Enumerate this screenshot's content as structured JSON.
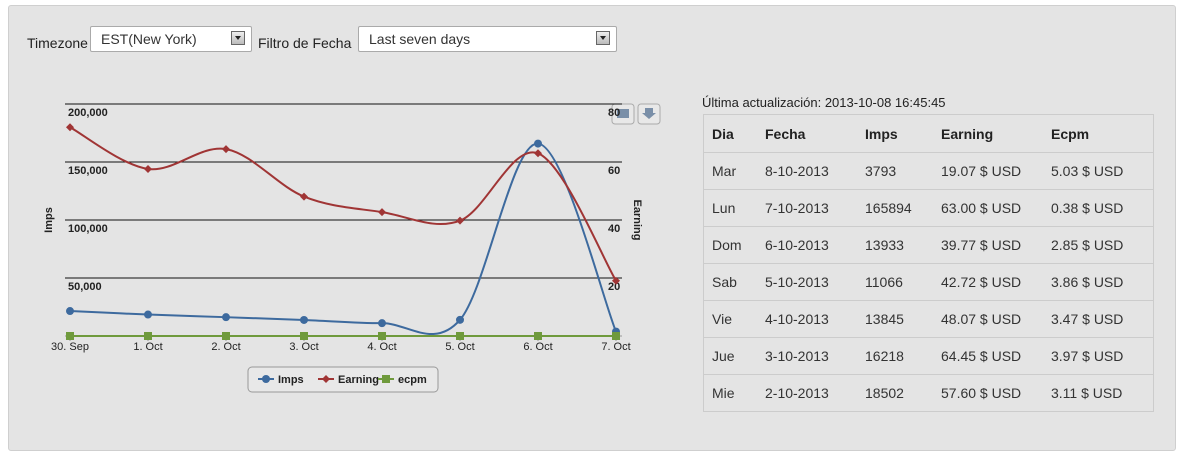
{
  "controls": {
    "timezone_label": "Timezone",
    "timezone_value": "EST(New York)",
    "date_filter_label": "Filtro de Fecha",
    "date_filter_value": "Last seven days"
  },
  "last_update": "Última actualización: 2013-10-08 16:45:45",
  "chart_data": {
    "type": "line",
    "categories": [
      "30. Sep",
      "1. Oct",
      "2. Oct",
      "3. Oct",
      "4. Oct",
      "5. Oct",
      "6. Oct",
      "7. Oct"
    ],
    "y_label": "Imps",
    "y2_label": "Earning",
    "ylim": [
      0,
      200000
    ],
    "yticks": [
      {
        "value": 50000,
        "label": "50,000"
      },
      {
        "value": 100000,
        "label": "100,000"
      },
      {
        "value": 150000,
        "label": "150,000"
      },
      {
        "value": 200000,
        "label": "200,000"
      }
    ],
    "y2lim": [
      0,
      80
    ],
    "y2ticks": [
      20,
      40,
      60,
      80
    ],
    "grid": true,
    "series": [
      {
        "name": "Imps",
        "color": "#3d6a9e",
        "marker": "circle",
        "values": [
          21500,
          18502,
          16218,
          13845,
          11066,
          13933,
          165894,
          3793
        ]
      },
      {
        "name": "Earning",
        "color": "#a03535",
        "marker": "diamond",
        "axis": "y2",
        "values": [
          72,
          57.6,
          64.45,
          48.07,
          42.72,
          39.77,
          63.0,
          19.07
        ]
      },
      {
        "name": "ecpm",
        "color": "#6f9a3c",
        "marker": "square",
        "values": [
          3,
          3.11,
          3.97,
          3.47,
          3.86,
          2.85,
          0.38,
          5.03
        ]
      }
    ]
  },
  "table": {
    "header": [
      "Dia",
      "Fecha",
      "Imps",
      "Earning",
      "Ecpm"
    ],
    "rows": [
      [
        "Mar",
        "8-10-2013",
        "3793",
        "19.07 $ USD",
        "5.03 $ USD"
      ],
      [
        "Lun",
        "7-10-2013",
        "165894",
        "63.00 $ USD",
        "0.38 $ USD"
      ],
      [
        "Dom",
        "6-10-2013",
        "13933",
        "39.77 $ USD",
        "2.85 $ USD"
      ],
      [
        "Sab",
        "5-10-2013",
        "11066",
        "42.72 $ USD",
        "3.86 $ USD"
      ],
      [
        "Vie",
        "4-10-2013",
        "13845",
        "48.07 $ USD",
        "3.47 $ USD"
      ],
      [
        "Jue",
        "3-10-2013",
        "16218",
        "64.45 $ USD",
        "3.97 $ USD"
      ],
      [
        "Mie",
        "2-10-2013",
        "18502",
        "57.60 $ USD",
        "3.11 $ USD"
      ]
    ]
  }
}
